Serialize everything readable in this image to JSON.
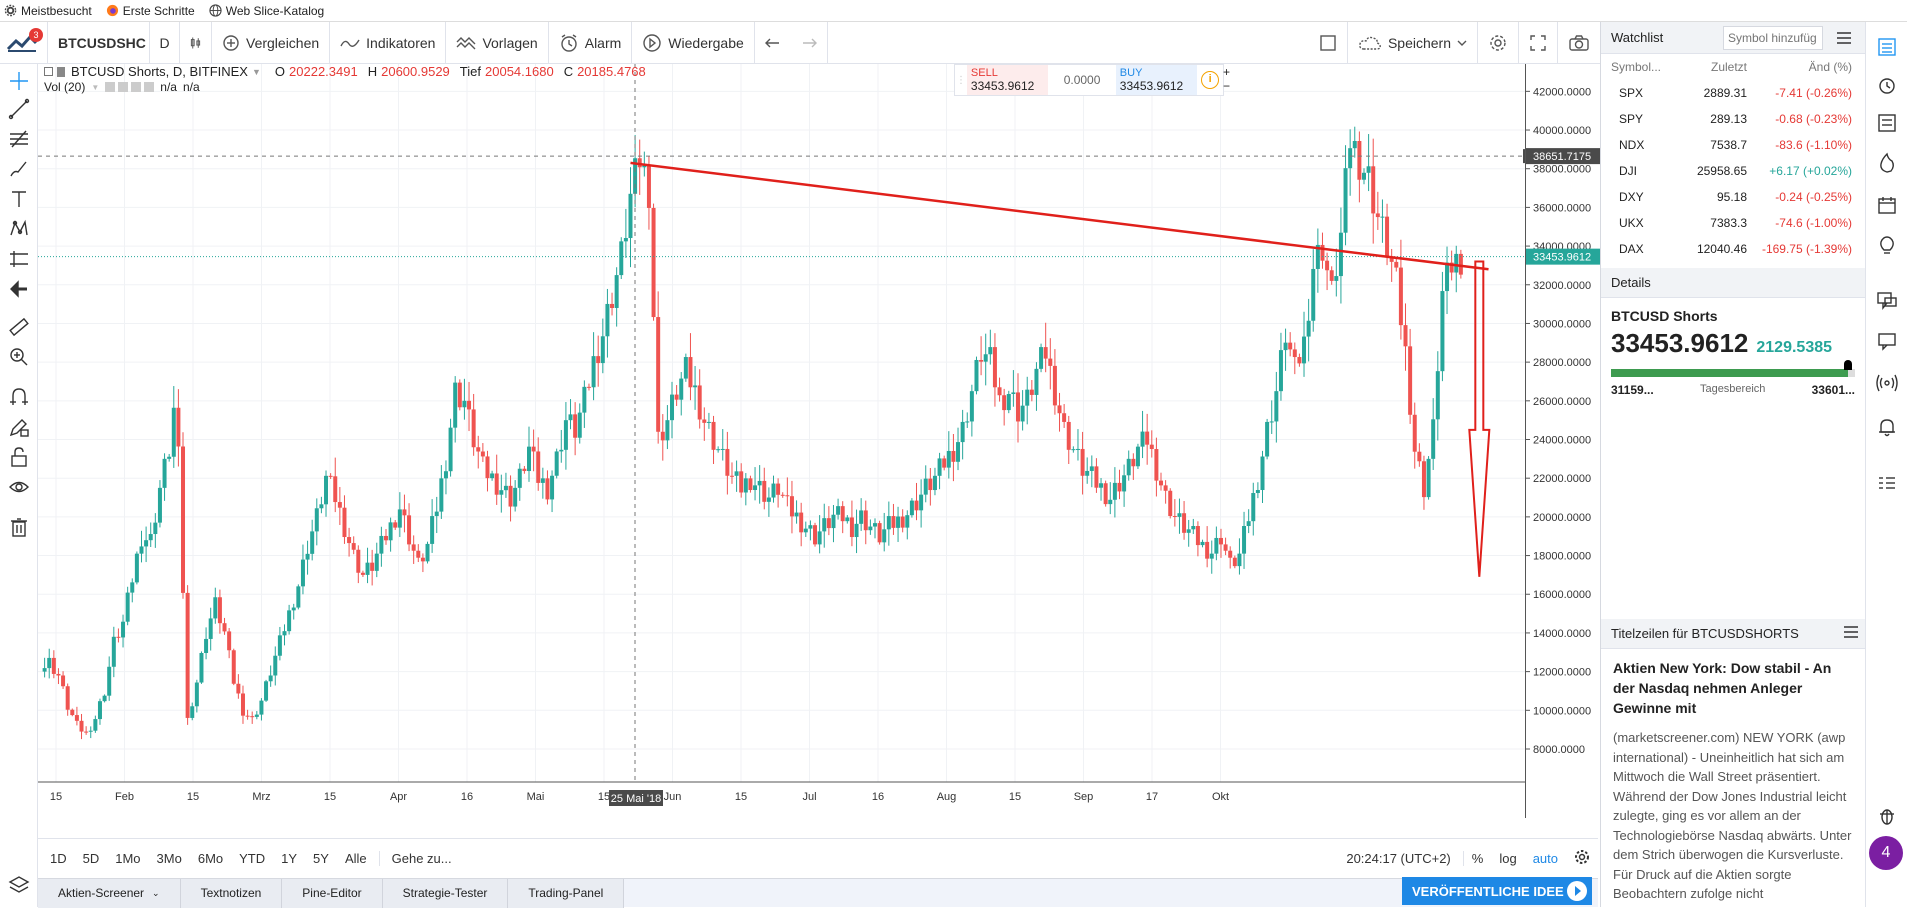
{
  "bookmarks": [
    {
      "label": "Meistbesucht",
      "icon": "gear-icon"
    },
    {
      "label": "Erste Schritte",
      "icon": "firefox-icon"
    },
    {
      "label": "Web Slice-Katalog",
      "icon": "globe-icon"
    }
  ],
  "toolbar": {
    "symbol": "BTCUSDSHC",
    "notification_count": "3",
    "interval": "D",
    "compare": "Vergleichen",
    "indicators": "Indikatoren",
    "templates": "Vorlagen",
    "alarm": "Alarm",
    "replay": "Wiedergabe",
    "save": "Speichern"
  },
  "legend": {
    "title": "BTCUSD Shorts, D, BITFINEX",
    "o_label": "O",
    "o_value": "20222.3491",
    "h_label": "H",
    "h_value": "20600.9529",
    "l_label": "Tief",
    "l_value": "20054.1680",
    "c_label": "C",
    "c_value": "20185.4768",
    "vol_label": "Vol (20)",
    "vol_v1": "n/a",
    "vol_v2": "n/a"
  },
  "trade": {
    "sell_label": "SELL",
    "sell_price": "33453.9612",
    "spread": "0.0000",
    "buy_label": "BUY",
    "buy_price": "33453.9612"
  },
  "chart_data": {
    "type": "candlestick",
    "ylim": [
      6500,
      43000
    ],
    "y_ticks": [
      "42000.0000",
      "40000.0000",
      "38000.0000",
      "36000.0000",
      "34000.0000",
      "32000.0000",
      "30000.0000",
      "28000.0000",
      "26000.0000",
      "24000.0000",
      "22000.0000",
      "20000.0000",
      "18000.0000",
      "16000.0000",
      "14000.0000",
      "12000.0000",
      "10000.0000",
      "8000.0000"
    ],
    "x_ticks": [
      "15",
      "Feb",
      "15",
      "Mrz",
      "15",
      "Apr",
      "16",
      "Mai",
      "15",
      "Jun",
      "15",
      "Jul",
      "16",
      "Aug",
      "15",
      "Sep",
      "17",
      "Okt"
    ],
    "crosshair_price": "38651.7175",
    "last_price": "33453.9612",
    "crosshair_date": "25 Mai '18",
    "close_path": [
      [
        0,
        12000
      ],
      [
        2,
        12500
      ],
      [
        4,
        11800
      ],
      [
        6,
        10200
      ],
      [
        8,
        9200
      ],
      [
        10,
        8800
      ],
      [
        12,
        9600
      ],
      [
        14,
        11000
      ],
      [
        16,
        13500
      ],
      [
        18,
        14500
      ],
      [
        20,
        16800
      ],
      [
        22,
        19000
      ],
      [
        24,
        18800
      ],
      [
        26,
        21500
      ],
      [
        28,
        23500
      ],
      [
        29,
        25500
      ],
      [
        30,
        23000
      ],
      [
        32,
        9500
      ],
      [
        34,
        11500
      ],
      [
        36,
        14000
      ],
      [
        38,
        15500
      ],
      [
        40,
        14000
      ],
      [
        42,
        11500
      ],
      [
        44,
        10000
      ],
      [
        46,
        9500
      ],
      [
        48,
        10500
      ],
      [
        50,
        12000
      ],
      [
        52,
        13500
      ],
      [
        54,
        15000
      ],
      [
        56,
        16500
      ],
      [
        58,
        18500
      ],
      [
        60,
        20000
      ],
      [
        62,
        22000
      ],
      [
        64,
        21000
      ],
      [
        66,
        19500
      ],
      [
        68,
        18000
      ],
      [
        70,
        17000
      ],
      [
        72,
        17500
      ],
      [
        74,
        18500
      ],
      [
        76,
        19500
      ],
      [
        78,
        20500
      ],
      [
        80,
        19000
      ],
      [
        82,
        17500
      ],
      [
        84,
        18500
      ],
      [
        86,
        20500
      ],
      [
        88,
        23000
      ],
      [
        90,
        26500
      ],
      [
        92,
        26000
      ],
      [
        94,
        24000
      ],
      [
        96,
        22500
      ],
      [
        98,
        22000
      ],
      [
        100,
        21500
      ],
      [
        102,
        21000
      ],
      [
        104,
        22000
      ],
      [
        106,
        23500
      ],
      [
        108,
        22000
      ],
      [
        110,
        21500
      ],
      [
        112,
        23000
      ],
      [
        114,
        25000
      ],
      [
        116,
        24500
      ],
      [
        118,
        26000
      ],
      [
        120,
        28000
      ],
      [
        122,
        29500
      ],
      [
        124,
        31500
      ],
      [
        126,
        33500
      ],
      [
        128,
        36500
      ],
      [
        130,
        38500
      ],
      [
        132,
        37000
      ],
      [
        134,
        24000
      ],
      [
        136,
        25000
      ],
      [
        138,
        26500
      ],
      [
        140,
        27500
      ],
      [
        142,
        26500
      ],
      [
        144,
        25000
      ],
      [
        146,
        24000
      ],
      [
        148,
        23000
      ],
      [
        150,
        22000
      ],
      [
        152,
        21500
      ],
      [
        154,
        22000
      ],
      [
        156,
        21500
      ],
      [
        158,
        21000
      ],
      [
        160,
        21500
      ],
      [
        162,
        20500
      ],
      [
        164,
        20000
      ],
      [
        166,
        19500
      ],
      [
        168,
        19000
      ],
      [
        170,
        19500
      ],
      [
        172,
        20000
      ],
      [
        174,
        20000
      ],
      [
        176,
        19500
      ],
      [
        178,
        20000
      ],
      [
        180,
        19500
      ],
      [
        182,
        19000
      ],
      [
        184,
        19500
      ],
      [
        186,
        19800
      ],
      [
        188,
        20200
      ],
      [
        190,
        20800
      ],
      [
        192,
        21500
      ],
      [
        194,
        22000
      ],
      [
        196,
        22800
      ],
      [
        198,
        23500
      ],
      [
        200,
        24500
      ],
      [
        202,
        26500
      ],
      [
        204,
        28500
      ],
      [
        206,
        28000
      ],
      [
        208,
        26000
      ],
      [
        210,
        26500
      ],
      [
        212,
        25500
      ],
      [
        214,
        26000
      ],
      [
        216,
        27500
      ],
      [
        218,
        28500
      ],
      [
        220,
        26500
      ],
      [
        222,
        24500
      ],
      [
        224,
        23500
      ],
      [
        226,
        22500
      ],
      [
        228,
        22000
      ],
      [
        230,
        21500
      ],
      [
        232,
        21000
      ],
      [
        234,
        21800
      ],
      [
        236,
        22500
      ],
      [
        238,
        23500
      ],
      [
        240,
        24000
      ],
      [
        242,
        22500
      ],
      [
        244,
        21000
      ],
      [
        246,
        20000
      ],
      [
        248,
        19500
      ],
      [
        250,
        19000
      ],
      [
        252,
        18500
      ],
      [
        254,
        18200
      ],
      [
        256,
        19000
      ],
      [
        258,
        17500
      ],
      [
        260,
        18000
      ],
      [
        262,
        20000
      ],
      [
        264,
        22000
      ],
      [
        266,
        24500
      ],
      [
        268,
        26500
      ],
      [
        270,
        29500
      ],
      [
        272,
        27500
      ],
      [
        274,
        29000
      ],
      [
        276,
        33000
      ],
      [
        278,
        34000
      ],
      [
        280,
        31500
      ],
      [
        282,
        34500
      ],
      [
        284,
        39500
      ],
      [
        286,
        38500
      ],
      [
        288,
        37500
      ],
      [
        290,
        35500
      ],
      [
        292,
        34000
      ],
      [
        294,
        32000
      ],
      [
        296,
        28500
      ],
      [
        298,
        23500
      ],
      [
        300,
        21500
      ],
      [
        302,
        24500
      ],
      [
        304,
        31500
      ],
      [
        306,
        33000
      ],
      [
        308,
        33453
      ]
    ],
    "trendline": [
      [
        128,
        38300
      ],
      [
        314,
        32800
      ]
    ],
    "arrow": {
      "x": 312,
      "top": 33200,
      "bottom": 16900
    }
  },
  "bottom_bar": {
    "ranges": [
      "1D",
      "5D",
      "1Mo",
      "3Mo",
      "6Mo",
      "YTD",
      "1Y",
      "5Y",
      "Alle"
    ],
    "goto": "Gehe zu...",
    "clock": "20:24:17 (UTC+2)",
    "percent": "%",
    "log": "log",
    "auto": "auto"
  },
  "bottom_tabs": [
    "Aktien-Screener",
    "Textnotizen",
    "Pine-Editor",
    "Strategie-Tester",
    "Trading-Panel"
  ],
  "publish_label": "VERÖFFENTLICHE IDEE",
  "watchlist": {
    "title": "Watchlist",
    "add_placeholder": "Symbol hinzufüg",
    "col_symbol": "Symbol...",
    "col_last": "Zuletzt",
    "col_change": "Änd (%)",
    "rows": [
      {
        "sym": "SPX",
        "last": "2889.31",
        "chg": "-7.41 (-0.26%)",
        "dir": "neg"
      },
      {
        "sym": "SPY",
        "last": "289.13",
        "chg": "-0.68 (-0.23%)",
        "dir": "neg"
      },
      {
        "sym": "NDX",
        "last": "7538.7",
        "chg": "-83.6 (-1.10%)",
        "dir": "neg"
      },
      {
        "sym": "DJI",
        "last": "25958.65",
        "chg": "+6.17 (+0.02%)",
        "dir": "pos"
      },
      {
        "sym": "DXY",
        "last": "95.18",
        "chg": "-0.24 (-0.25%)",
        "dir": "neg"
      },
      {
        "sym": "UKX",
        "last": "7383.3",
        "chg": "-74.6 (-1.00%)",
        "dir": "neg"
      },
      {
        "sym": "DAX",
        "last": "12040.46",
        "chg": "-169.75 (-1.39%)",
        "dir": "neg"
      }
    ]
  },
  "details": {
    "title": "Details",
    "name": "BTCUSD Shorts",
    "price": "33453.9612",
    "change": "2129.5385",
    "range_low": "31159...",
    "range_label": "Tagesbereich",
    "range_high": "33601...",
    "range_position": 0.97
  },
  "news": {
    "title": "Titelzeilen für BTCUSDSHORTS",
    "headline": "Aktien New York: Dow stabil - An der Nasdaq nehmen Anleger Gewinne mit",
    "body": "(marketscreener.com) NEW YORK (awp international) - Uneinheitlich hat sich am Mittwoch die Wall Street präsentiert. Während der Dow Jones Industrial leicht zulegte, ging es vor allem an der Technologiebörse Nasdaq abwärts. Unter dem Strich überwogen die Kursverluste. Für Druck auf die Aktien sorgte Beobachtern zufolge nicht"
  },
  "chat_badge": "4"
}
